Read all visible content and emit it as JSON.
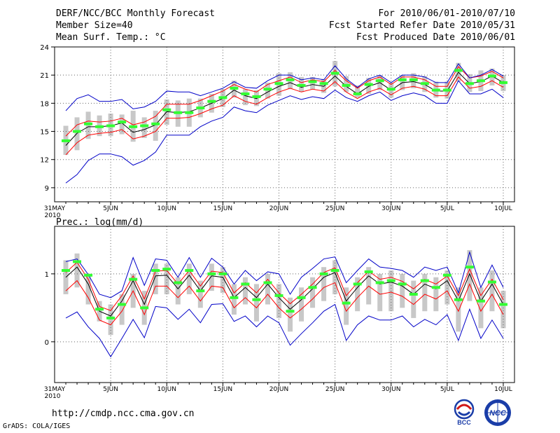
{
  "header": {
    "title": "DERF/NCC/BCC Monthly Forecast",
    "member_size": "Member Size=40",
    "variable": "Mean Surf. Temp.: °C",
    "period": "For 2010/06/01-2010/07/10",
    "fcst_started": "Fcst Started Refer Date 2010/05/31",
    "fcst_produced": "Fcst Produced Date 2010/06/01"
  },
  "footer": {
    "url": "http://cmdp.ncc.cma.gov.cn",
    "grads": "GrADS: COLA/IGES"
  },
  "logos": {
    "bcc": "BCC",
    "ncc": "NCC"
  },
  "colors": {
    "mean": "#000000",
    "spread": "#ff0000",
    "extreme": "#0000c8",
    "box": "#c8c8c8",
    "median": "#33ff33"
  },
  "chart_data": [
    {
      "type": "line",
      "title": "Mean Surf. Temp.: °C",
      "x": [
        1,
        2,
        3,
        4,
        5,
        6,
        7,
        8,
        9,
        10,
        11,
        12,
        13,
        14,
        15,
        16,
        17,
        18,
        19,
        20,
        21,
        22,
        23,
        24,
        25,
        26,
        27,
        28,
        29,
        30,
        31,
        32,
        33,
        34,
        35,
        36,
        37,
        38,
        39,
        40
      ],
      "xtick_labels": [
        {
          "x": 0,
          "label": "31MAY",
          "sub": "2010"
        },
        {
          "x": 5,
          "label": "5JUN"
        },
        {
          "x": 10,
          "label": "10JUN"
        },
        {
          "x": 15,
          "label": "15JUN"
        },
        {
          "x": 20,
          "label": "20JUN"
        },
        {
          "x": 25,
          "label": "25JUN"
        },
        {
          "x": 30,
          "label": "30JUN"
        },
        {
          "x": 35,
          "label": "5JUL"
        },
        {
          "x": 40,
          "label": "10JUL"
        }
      ],
      "xlim": [
        0,
        41
      ],
      "ylim": [
        7.5,
        24
      ],
      "yticks": [
        9,
        12,
        15,
        18,
        21,
        24
      ],
      "series": [
        {
          "name": "mean",
          "values": [
            13.5,
            14.8,
            15.5,
            15.5,
            15.6,
            15.9,
            14.9,
            15.2,
            15.7,
            17.1,
            17.0,
            17.1,
            17.5,
            18.0,
            18.5,
            19.4,
            18.8,
            18.5,
            19.2,
            19.8,
            20.2,
            19.7,
            20.0,
            19.8,
            20.9,
            19.8,
            19.0,
            19.8,
            20.2,
            19.4,
            20.2,
            20.3,
            20.0,
            19.3,
            19.3,
            21.3,
            20.1,
            20.3,
            20.9,
            20.2
          ]
        },
        {
          "name": "upper",
          "values": [
            14.5,
            15.7,
            16.1,
            16.0,
            16.1,
            16.4,
            15.7,
            16.0,
            16.6,
            17.9,
            17.9,
            17.9,
            18.3,
            18.8,
            19.3,
            20.0,
            19.5,
            19.2,
            20.0,
            20.4,
            20.8,
            20.2,
            20.5,
            20.3,
            21.5,
            20.4,
            19.6,
            20.4,
            20.8,
            20.0,
            20.8,
            20.8,
            20.5,
            19.8,
            19.8,
            21.9,
            20.7,
            20.9,
            21.4,
            20.7
          ]
        },
        {
          "name": "lower",
          "values": [
            12.5,
            13.8,
            14.6,
            14.8,
            14.9,
            15.2,
            14.2,
            14.5,
            15.0,
            16.4,
            16.4,
            16.5,
            16.9,
            17.4,
            17.8,
            18.8,
            18.2,
            17.9,
            18.6,
            19.2,
            19.6,
            19.2,
            19.5,
            19.3,
            20.3,
            19.2,
            18.5,
            19.2,
            19.6,
            18.9,
            19.6,
            19.8,
            19.5,
            18.8,
            18.8,
            20.8,
            19.6,
            19.8,
            20.4,
            19.7
          ]
        },
        {
          "name": "max",
          "values": [
            17.2,
            18.5,
            18.9,
            18.2,
            18.2,
            18.4,
            17.4,
            17.6,
            18.2,
            19.3,
            19.2,
            19.2,
            18.8,
            19.2,
            19.6,
            20.3,
            19.7,
            19.6,
            20.4,
            21.0,
            21.0,
            20.5,
            20.7,
            20.5,
            22.0,
            20.6,
            19.7,
            20.6,
            21.0,
            20.2,
            21.0,
            21.0,
            20.8,
            20.2,
            20.2,
            22.2,
            20.7,
            21.0,
            21.6,
            20.9
          ]
        },
        {
          "name": "min",
          "values": [
            9.5,
            10.4,
            11.9,
            12.6,
            12.6,
            12.3,
            11.4,
            11.9,
            12.8,
            14.6,
            14.6,
            14.6,
            15.5,
            16.1,
            16.5,
            17.6,
            17.2,
            17.0,
            17.8,
            18.3,
            18.8,
            18.4,
            18.7,
            18.5,
            19.4,
            18.6,
            18.2,
            18.8,
            19.2,
            18.3,
            18.8,
            19.1,
            18.8,
            18.0,
            18.0,
            20.4,
            19.0,
            19.0,
            19.5,
            18.6
          ]
        }
      ],
      "box_low": [
        12.5,
        13.0,
        14.2,
        14.5,
        14.5,
        14.7,
        13.9,
        14.3,
        14.0,
        15.7,
        15.5,
        15.5,
        16.5,
        17.0,
        17.6,
        18.6,
        17.8,
        17.7,
        18.5,
        18.8,
        19.5,
        19.2,
        19.5,
        19.1,
        19.8,
        19.2,
        18.6,
        19.0,
        19.4,
        18.6,
        19.4,
        19.6,
        19.2,
        18.6,
        18.5,
        20.3,
        19.2,
        19.3,
        19.9,
        19.3
      ],
      "box_high": [
        15.6,
        16.5,
        17.1,
        16.7,
        16.9,
        16.8,
        17.2,
        16.5,
        17.2,
        18.4,
        18.3,
        18.5,
        18.5,
        19.0,
        19.5,
        20.4,
        19.5,
        19.4,
        20.2,
        21.2,
        21.3,
        20.8,
        20.8,
        20.6,
        22.5,
        20.9,
        19.9,
        20.7,
        21.0,
        20.2,
        21.0,
        21.2,
        20.9,
        20.3,
        20.3,
        22.3,
        21.1,
        21.5,
        21.7,
        21.0
      ],
      "median": [
        14.0,
        15.0,
        15.8,
        15.5,
        15.6,
        16.0,
        15.5,
        15.6,
        15.8,
        17.3,
        17.0,
        17.0,
        17.5,
        18.2,
        18.6,
        19.6,
        19.0,
        18.7,
        19.5,
        20.1,
        20.5,
        19.9,
        20.3,
        20.1,
        21.2,
        19.9,
        19.0,
        20.0,
        20.4,
        19.5,
        20.5,
        20.5,
        20.1,
        19.4,
        19.4,
        21.5,
        20.1,
        20.4,
        20.9,
        20.2
      ]
    },
    {
      "type": "line",
      "title": "Prec.: log(mm/d)",
      "x": [
        1,
        2,
        3,
        4,
        5,
        6,
        7,
        8,
        9,
        10,
        11,
        12,
        13,
        14,
        15,
        16,
        17,
        18,
        19,
        20,
        21,
        22,
        23,
        24,
        25,
        26,
        27,
        28,
        29,
        30,
        31,
        32,
        33,
        34,
        35,
        36,
        37,
        38,
        39,
        40
      ],
      "xtick_labels": [
        {
          "x": 0,
          "label": "31MAY",
          "sub": "2010"
        },
        {
          "x": 5,
          "label": "5JUN"
        },
        {
          "x": 10,
          "label": "10JUN"
        },
        {
          "x": 15,
          "label": "15JUN"
        },
        {
          "x": 20,
          "label": "20JUN"
        },
        {
          "x": 25,
          "label": "25JUN"
        },
        {
          "x": 30,
          "label": "30JUN"
        },
        {
          "x": 35,
          "label": "5JUL"
        },
        {
          "x": 40,
          "label": "10JUL"
        }
      ],
      "xlim": [
        0,
        41
      ],
      "ylim": [
        -0.6,
        1.7
      ],
      "yticks": [
        0,
        1
      ],
      "series": [
        {
          "name": "mean",
          "values": [
            0.95,
            1.1,
            0.85,
            0.45,
            0.38,
            0.6,
            0.9,
            0.55,
            0.97,
            0.98,
            0.78,
            0.98,
            0.75,
            0.97,
            0.95,
            0.65,
            0.8,
            0.65,
            0.85,
            0.65,
            0.48,
            0.62,
            0.78,
            0.95,
            1.02,
            0.6,
            0.8,
            0.97,
            0.85,
            0.88,
            0.82,
            0.7,
            0.85,
            0.78,
            0.9,
            0.6,
            1.0,
            0.6,
            0.85,
            0.55
          ]
        },
        {
          "name": "upper",
          "values": [
            1.02,
            1.17,
            0.92,
            0.52,
            0.46,
            0.68,
            0.97,
            0.63,
            1.04,
            1.05,
            0.85,
            1.05,
            0.82,
            1.04,
            1.02,
            0.72,
            0.87,
            0.72,
            0.92,
            0.72,
            0.56,
            0.7,
            0.85,
            1.02,
            1.09,
            0.68,
            0.87,
            1.04,
            0.92,
            0.95,
            0.89,
            0.78,
            0.92,
            0.85,
            0.97,
            0.68,
            1.07,
            0.68,
            0.92,
            0.62
          ]
        },
        {
          "name": "lower",
          "values": [
            0.75,
            0.9,
            0.65,
            0.32,
            0.25,
            0.45,
            0.75,
            0.4,
            0.82,
            0.82,
            0.65,
            0.82,
            0.6,
            0.82,
            0.8,
            0.5,
            0.65,
            0.5,
            0.7,
            0.5,
            0.35,
            0.48,
            0.63,
            0.8,
            0.87,
            0.45,
            0.65,
            0.82,
            0.7,
            0.73,
            0.67,
            0.55,
            0.7,
            0.63,
            0.75,
            0.45,
            0.85,
            0.45,
            0.7,
            0.4
          ]
        },
        {
          "name": "max",
          "values": [
            1.18,
            1.22,
            0.99,
            0.7,
            0.65,
            0.75,
            1.24,
            0.83,
            1.22,
            1.2,
            0.95,
            1.24,
            0.95,
            1.23,
            1.1,
            0.85,
            1.05,
            0.9,
            1.03,
            1.0,
            0.7,
            0.95,
            1.08,
            1.22,
            1.25,
            0.87,
            1.05,
            1.22,
            1.1,
            1.08,
            1.05,
            0.95,
            1.1,
            1.05,
            1.1,
            0.72,
            1.32,
            0.8,
            1.13,
            0.8
          ]
        },
        {
          "name": "min",
          "values": [
            0.35,
            0.44,
            0.22,
            0.05,
            -0.22,
            0.05,
            0.33,
            0.06,
            0.52,
            0.5,
            0.33,
            0.48,
            0.28,
            0.55,
            0.56,
            0.3,
            0.38,
            0.22,
            0.38,
            0.28,
            -0.05,
            0.12,
            0.28,
            0.45,
            0.55,
            0.02,
            0.25,
            0.38,
            0.32,
            0.32,
            0.38,
            0.22,
            0.33,
            0.25,
            0.4,
            0.02,
            0.48,
            0.05,
            0.32,
            0.05
          ]
        }
      ],
      "box_low": [
        0.7,
        0.8,
        0.55,
        0.3,
        0.1,
        0.25,
        0.5,
        0.25,
        0.7,
        0.7,
        0.55,
        0.7,
        0.5,
        0.75,
        0.72,
        0.4,
        0.55,
        0.3,
        0.55,
        0.35,
        0.15,
        0.3,
        0.5,
        0.6,
        0.7,
        0.25,
        0.45,
        0.55,
        0.45,
        0.45,
        0.5,
        0.35,
        0.45,
        0.45,
        0.55,
        0.15,
        0.6,
        0.2,
        0.45,
        0.2
      ],
      "box_high": [
        1.2,
        1.3,
        1.0,
        0.6,
        0.55,
        0.7,
        1.0,
        0.75,
        1.15,
        1.15,
        0.95,
        1.15,
        0.9,
        1.15,
        1.1,
        0.85,
        0.95,
        0.85,
        1.0,
        0.85,
        0.65,
        0.8,
        0.95,
        1.1,
        1.2,
        0.8,
        0.95,
        1.1,
        1.0,
        1.05,
        1.0,
        0.9,
        1.0,
        0.95,
        1.05,
        0.8,
        1.35,
        0.8,
        1.05,
        0.75
      ],
      "median": [
        1.05,
        1.18,
        0.98,
        0.48,
        0.35,
        0.55,
        0.92,
        0.5,
        1.05,
        1.07,
        0.87,
        1.05,
        0.75,
        1.0,
        1.0,
        0.65,
        0.85,
        0.62,
        0.87,
        0.68,
        0.45,
        0.65,
        0.8,
        1.0,
        1.05,
        0.57,
        0.85,
        1.03,
        0.87,
        0.9,
        0.85,
        0.7,
        0.9,
        0.8,
        0.98,
        0.62,
        1.1,
        0.6,
        0.88,
        0.55
      ]
    }
  ]
}
